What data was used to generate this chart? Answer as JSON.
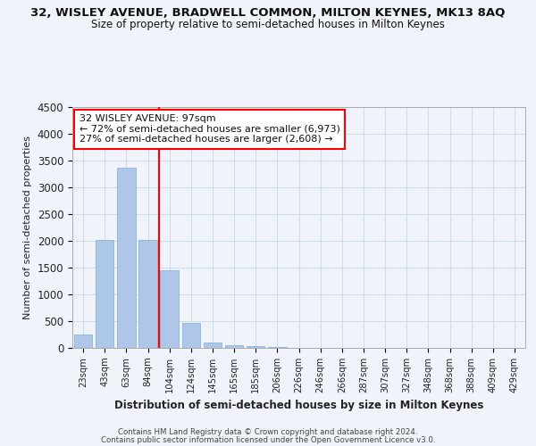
{
  "title_line1": "32, WISLEY AVENUE, BRADWELL COMMON, MILTON KEYNES, MK13 8AQ",
  "title_line2": "Size of property relative to semi-detached houses in Milton Keynes",
  "xlabel": "Distribution of semi-detached houses by size in Milton Keynes",
  "ylabel": "Number of semi-detached properties",
  "bar_labels": [
    "23sqm",
    "43sqm",
    "63sqm",
    "84sqm",
    "104sqm",
    "124sqm",
    "145sqm",
    "165sqm",
    "185sqm",
    "206sqm",
    "226sqm",
    "246sqm",
    "266sqm",
    "287sqm",
    "307sqm",
    "327sqm",
    "348sqm",
    "368sqm",
    "388sqm",
    "409sqm",
    "429sqm"
  ],
  "bar_values": [
    250,
    2020,
    3370,
    2020,
    1450,
    475,
    100,
    55,
    30,
    15,
    8,
    5,
    3,
    2,
    1,
    1,
    0,
    0,
    0,
    0,
    0
  ],
  "bar_color": "#aec6e8",
  "bar_edge_color": "#7aafd4",
  "grid_color": "#d0dce8",
  "property_label": "32 WISLEY AVENUE: 97sqm",
  "pct_smaller": 72,
  "n_smaller": 6973,
  "pct_larger": 27,
  "n_larger": 2608,
  "vline_x_index": 3.5,
  "ylim": [
    0,
    4500
  ],
  "yticks": [
    0,
    500,
    1000,
    1500,
    2000,
    2500,
    3000,
    3500,
    4000,
    4500
  ],
  "footer_line1": "Contains HM Land Registry data © Crown copyright and database right 2024.",
  "footer_line2": "Contains public sector information licensed under the Open Government Licence v3.0.",
  "bg_color": "#f0f4fa",
  "plot_bg_color": "#f0f4fa"
}
